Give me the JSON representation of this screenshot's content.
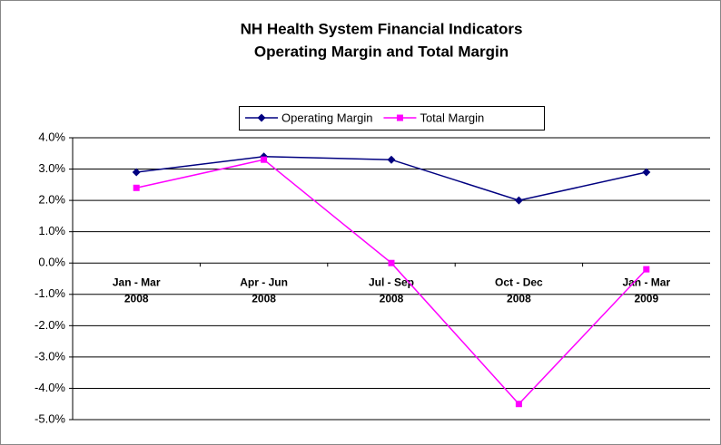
{
  "chart_data": {
    "type": "line",
    "title": "NH Health System Financial Indicators",
    "subtitle": "Operating Margin and Total Margin",
    "categories": [
      [
        "Jan - Mar",
        "2008"
      ],
      [
        "Apr - Jun",
        "2008"
      ],
      [
        "Jul - Sep",
        "2008"
      ],
      [
        "Oct - Dec",
        "2008"
      ],
      [
        "Jan - Mar",
        "2009"
      ]
    ],
    "series": [
      {
        "name": "Operating Margin",
        "color": "#000080",
        "marker": "diamond",
        "values": [
          2.9,
          3.4,
          3.3,
          2.0,
          2.9
        ]
      },
      {
        "name": "Total Margin",
        "color": "#ff00ff",
        "marker": "square",
        "values": [
          2.4,
          3.3,
          0.0,
          -4.5,
          -0.2
        ]
      }
    ],
    "ylim": [
      -5,
      4
    ],
    "yticks": [
      {
        "value": -5,
        "label": "-5.0%"
      },
      {
        "value": -4,
        "label": "-4.0%"
      },
      {
        "value": -3,
        "label": "-3.0%"
      },
      {
        "value": -2,
        "label": "-2.0%"
      },
      {
        "value": -1,
        "label": "-1.0%"
      },
      {
        "value": 0,
        "label": "0.0%"
      },
      {
        "value": 1,
        "label": "1.0%"
      },
      {
        "value": 2,
        "label": "2.0%"
      },
      {
        "value": 3,
        "label": "3.0%"
      },
      {
        "value": 4,
        "label": "4.0%"
      }
    ],
    "grid": true,
    "legend": "top"
  }
}
